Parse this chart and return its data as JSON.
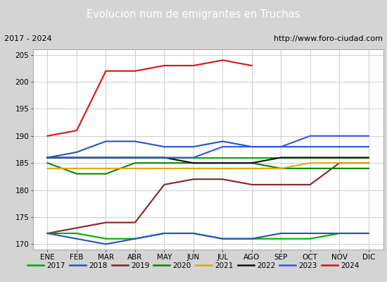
{
  "title": "Evolucion num de emigrantes en Truchas",
  "title_bg": "#4d7ebf",
  "subtitle_left": "2017 - 2024",
  "subtitle_right": "http://www.foro-ciudad.com",
  "months": [
    "ENE",
    "FEB",
    "MAR",
    "ABR",
    "MAY",
    "JUN",
    "JUL",
    "AGO",
    "SEP",
    "OCT",
    "NOV",
    "DIC"
  ],
  "ylim": [
    169,
    206
  ],
  "yticks": [
    170,
    175,
    180,
    185,
    190,
    195,
    200,
    205
  ],
  "series_order": [
    "2017",
    "2018",
    "2019",
    "2020",
    "2021",
    "2022",
    "2023",
    "2024"
  ],
  "series": {
    "2017": {
      "color": "#00aa00",
      "values": [
        186,
        186,
        186,
        186,
        186,
        186,
        186,
        186,
        186,
        186,
        186,
        186
      ]
    },
    "2018": {
      "color": "#2255bb",
      "values": [
        186,
        187,
        189,
        189,
        188,
        188,
        189,
        188,
        188,
        188,
        188,
        188
      ]
    },
    "2019": {
      "color": "#882222",
      "values": [
        172,
        173,
        174,
        174,
        181,
        182,
        182,
        181,
        181,
        181,
        185,
        185
      ]
    },
    "2020": {
      "color": "#008800",
      "values": [
        185,
        183,
        183,
        185,
        185,
        185,
        185,
        185,
        184,
        184,
        184,
        184
      ]
    },
    "2021": {
      "color": "#ddaa00",
      "values": [
        184,
        184,
        184,
        184,
        184,
        184,
        184,
        184,
        184,
        185,
        185,
        185
      ]
    },
    "2022": {
      "color": "#111111",
      "values": [
        186,
        186,
        186,
        186,
        186,
        185,
        185,
        185,
        186,
        186,
        186,
        186
      ]
    },
    "2023": {
      "color": "#3355ee",
      "values": [
        186,
        186,
        186,
        186,
        186,
        186,
        188,
        188,
        188,
        190,
        190,
        190
      ]
    },
    "2024": {
      "color": "#dd1111",
      "values": [
        190,
        191,
        202,
        202,
        203,
        203,
        204,
        203,
        null,
        null,
        null,
        null
      ]
    }
  },
  "bottom_green": [
    172,
    172,
    171,
    171,
    172,
    172,
    171,
    171,
    171,
    171,
    172,
    172
  ],
  "bottom_blue": [
    172,
    171,
    170,
    171,
    172,
    172,
    171,
    171,
    172,
    172,
    172,
    172
  ],
  "fig_width": 5.5,
  "fig_height": 4.0,
  "dpi": 100
}
